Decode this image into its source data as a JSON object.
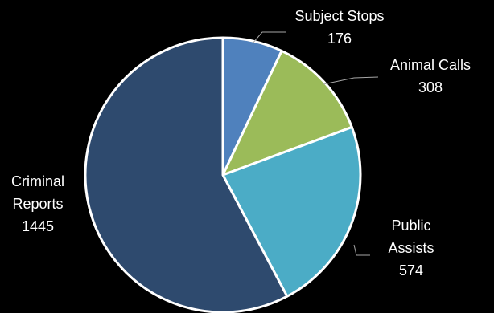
{
  "chart_data": {
    "type": "pie",
    "title": "",
    "start_angle_deg": 0,
    "direction": "clockwise",
    "legend": "none",
    "slices": [
      {
        "category": "Subject Stops",
        "value": 176,
        "label_lines": [
          "Subject Stops",
          "176"
        ],
        "color": "#4f81bd"
      },
      {
        "category": "Animal Calls",
        "value": 308,
        "label_lines": [
          "Animal Calls",
          "308"
        ],
        "color": "#9bbb59"
      },
      {
        "category": "Public Assists",
        "value": 574,
        "label_lines": [
          "Public",
          "Assists",
          "574"
        ],
        "color": "#4bacc6"
      },
      {
        "category": "Criminal Reports",
        "value": 1445,
        "label_lines": [
          "Criminal",
          "Reports",
          "1445"
        ],
        "color": "#2e4a6e"
      }
    ],
    "slice_border_color": "#ffffff",
    "background": "#000000"
  }
}
